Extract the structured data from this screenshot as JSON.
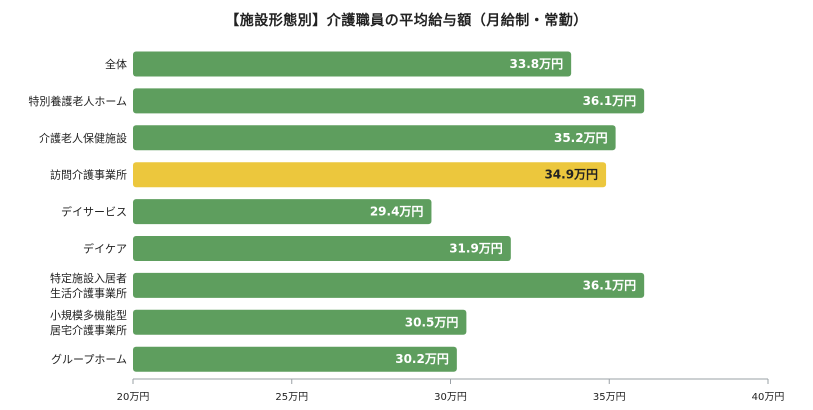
{
  "chart_data": {
    "type": "bar",
    "orientation": "horizontal",
    "title": "【施設形態別】介護職員の平均給与額（月給制・常勤）",
    "categories": [
      [
        "全体"
      ],
      [
        "特別養護老人ホーム"
      ],
      [
        "介護老人保健施設"
      ],
      [
        "訪問介護事業所"
      ],
      [
        "デイサービス"
      ],
      [
        "デイケア"
      ],
      [
        "特定施設入居者",
        "生活介護事業所"
      ],
      [
        "小規模多機能型",
        "居宅介護事業所"
      ],
      [
        "グループホーム"
      ]
    ],
    "values": [
      33.8,
      36.1,
      35.2,
      34.9,
      29.4,
      31.9,
      36.1,
      30.5,
      30.2
    ],
    "value_labels": [
      "33.8万円",
      "36.1万円",
      "35.2万円",
      "34.9万円",
      "29.4万円",
      "31.9万円",
      "36.1万円",
      "30.5万円",
      "30.2万円"
    ],
    "highlight_index": 3,
    "xlim": [
      20,
      40
    ],
    "xticks": [
      20,
      25,
      30,
      35,
      40
    ],
    "xtick_labels": [
      "20万円",
      "25万円",
      "30万円",
      "35万円",
      "40万円"
    ],
    "xlabel": "",
    "ylabel": "",
    "grid": false,
    "colors": {
      "bar": "#5e9e5e",
      "highlight": "#ecc73d",
      "label_on_bar": "#ffffff",
      "label_on_highlight": "#222222"
    }
  }
}
